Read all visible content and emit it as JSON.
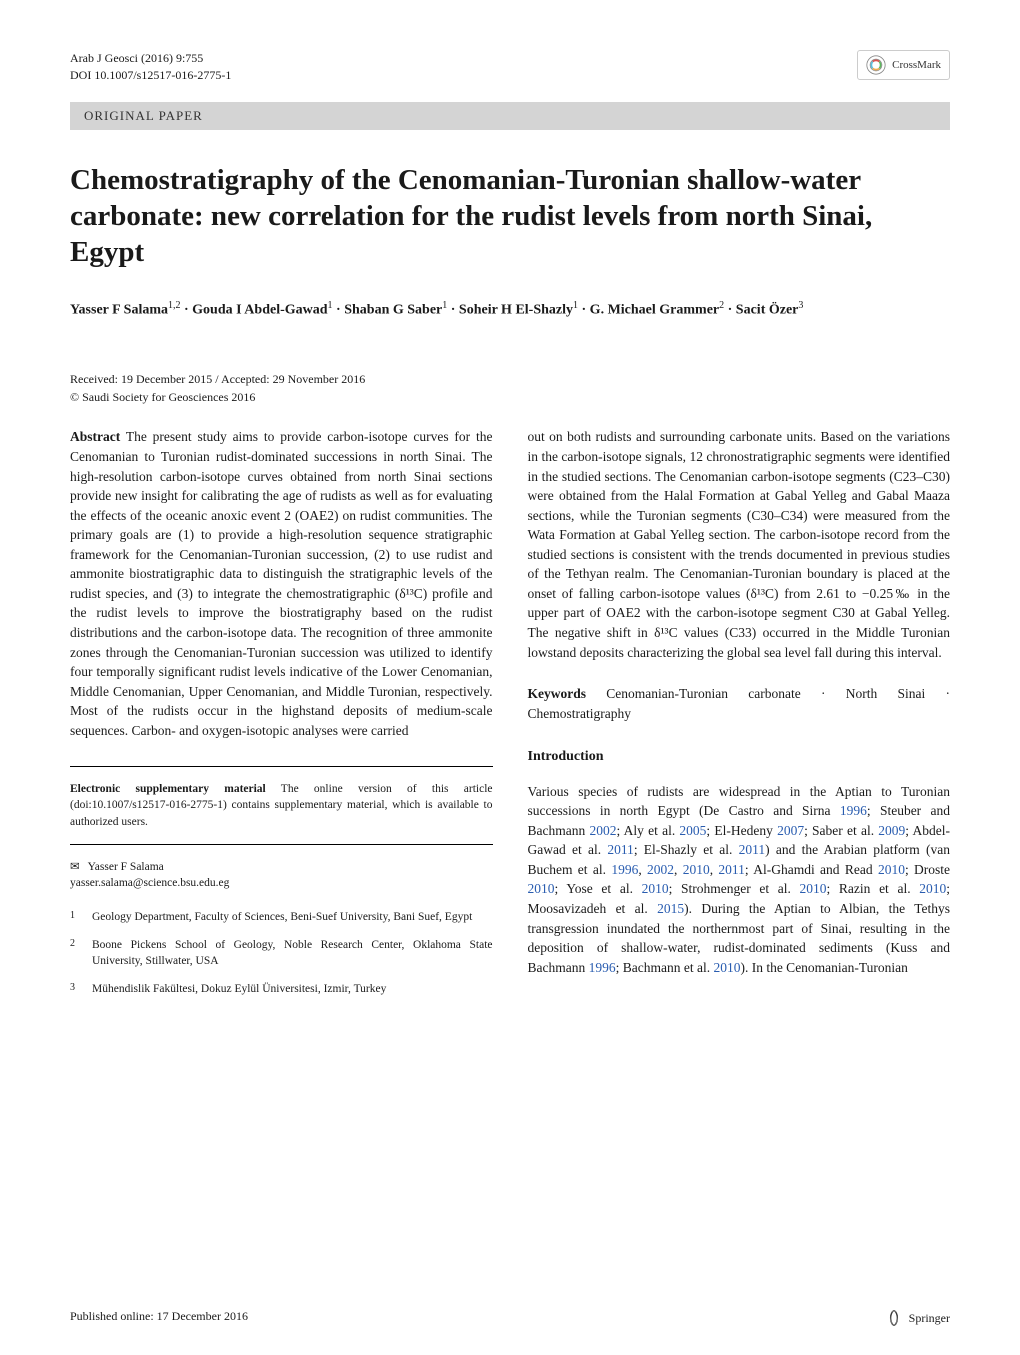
{
  "header": {
    "journal_line": "Arab J Geosci (2016) 9:755",
    "doi_line": "DOI 10.1007/s12517-016-2775-1",
    "crossmark_label": "CrossMark",
    "paper_type": "ORIGINAL PAPER"
  },
  "title": "Chemostratigraphy of the Cenomanian-Turonian shallow-water carbonate: new correlation for the rudist levels from north Sinai, Egypt",
  "authors_html": "Yasser F Salama<sup>1,2</sup> · Gouda I Abdel-Gawad<sup>1</sup> · Shaban G Saber<sup>1</sup> · Soheir H El-Shazly<sup>1</sup> · G. Michael Grammer<sup>2</sup> · Sacit Özer<sup>3</sup>",
  "dates": "Received: 19 December 2015 / Accepted: 29 November 2016",
  "copyright": "© Saudi Society for Geosciences 2016",
  "abstract": {
    "label": "Abstract",
    "text_left": " The present study aims to provide carbon-isotope curves for the Cenomanian to Turonian rudist-dominated successions in north Sinai. The high-resolution carbon-isotope curves obtained from north Sinai sections provide new insight for calibrating the age of rudists as well as for evaluating the effects of the oceanic anoxic event 2 (OAE2) on rudist communities. The primary goals are (1) to provide a high-resolution sequence stratigraphic framework for the Cenomanian-Turonian succession, (2) to use rudist and ammonite biostratigraphic data to distinguish the stratigraphic levels of the rudist species, and (3) to integrate the chemostratigraphic (δ¹³C) profile and the rudist levels to improve the biostratigraphy based on the rudist distributions and the carbon-isotope data. The recognition of three ammonite zones through the Cenomanian-Turonian succession was utilized to identify four temporally significant rudist levels indicative of the Lower Cenomanian, Middle Cenomanian, Upper Cenomanian, and Middle Turonian, respectively. Most of the rudists occur in the highstand deposits of medium-scale sequences. Carbon- and oxygen-isotopic analyses were carried",
    "text_right": "out on both rudists and surrounding carbonate units. Based on the variations in the carbon-isotope signals, 12 chronostratigraphic segments were identified in the studied sections. The Cenomanian carbon-isotope segments (C23–C30) were obtained from the Halal Formation at Gabal Yelleg and Gabal Maaza sections, while the Turonian segments (C30–C34) were measured from the Wata Formation at Gabal Yelleg section. The carbon-isotope record from the studied sections is consistent with the trends documented in previous studies of the Tethyan realm. The Cenomanian-Turonian boundary is placed at the onset of falling carbon-isotope values (δ¹³C) from 2.61 to −0.25‰ in the upper part of OAE2 with the carbon-isotope segment C30 at Gabal Yelleg. The negative shift in δ¹³C values (C33) occurred in the Middle Turonian lowstand deposits characterizing the global sea level fall during this interval."
  },
  "keywords": {
    "label": "Keywords",
    "text": " Cenomanian-Turonian carbonate · North Sinai · Chemostratigraphy"
  },
  "introduction": {
    "heading": "Introduction",
    "text_html": "Various species of rudists are widespread in the Aptian to Turonian successions in north Egypt (De Castro and Sirna <span class='link'>1996</span>; Steuber and Bachmann <span class='link'>2002</span>; Aly et al. <span class='link'>2005</span>; El-Hedeny <span class='link'>2007</span>; Saber et al. <span class='link'>2009</span>; Abdel-Gawad et al. <span class='link'>2011</span>; El-Shazly et al. <span class='link'>2011</span>) and the Arabian platform (van Buchem et al. <span class='link'>1996</span>, <span class='link'>2002</span>, <span class='link'>2010</span>, <span class='link'>2011</span>; Al-Ghamdi and Read <span class='link'>2010</span>; Droste <span class='link'>2010</span>; Yose et al. <span class='link'>2010</span>; Strohmenger et al. <span class='link'>2010</span>; Razin et al. <span class='link'>2010</span>; Moosavizadeh et al. <span class='link'>2015</span>). During the Aptian to Albian, the Tethys transgression inundated the northernmost part of Sinai, resulting in the deposition of shallow-water, rudist-dominated sediments (Kuss and Bachmann <span class='link'>1996</span>; Bachmann et al. <span class='link'>2010</span>). In the Cenomanian-Turonian"
  },
  "supplementary": {
    "label": "Electronic supplementary material",
    "text": " The online version of this article (doi:10.1007/s12517-016-2775-1) contains supplementary material, which is available to authorized users."
  },
  "corresponding": {
    "name": "Yasser F Salama",
    "email": "yasser.salama@science.bsu.edu.eg"
  },
  "affiliations": [
    {
      "num": "1",
      "text": "Geology Department, Faculty of Sciences, Beni-Suef University, Bani Suef, Egypt"
    },
    {
      "num": "2",
      "text": "Boone Pickens School of Geology, Noble Research Center, Oklahoma State University, Stillwater, USA"
    },
    {
      "num": "3",
      "text": "Mühendislik Fakültesi, Dokuz Eylül Üniversitesi, Izmir, Turkey"
    }
  ],
  "footer": {
    "published": "Published online: 17 December 2016",
    "publisher": "Springer"
  },
  "colors": {
    "bar_bg": "#d4d4d4",
    "link": "#2a5db0",
    "text": "#1a1a1a"
  }
}
